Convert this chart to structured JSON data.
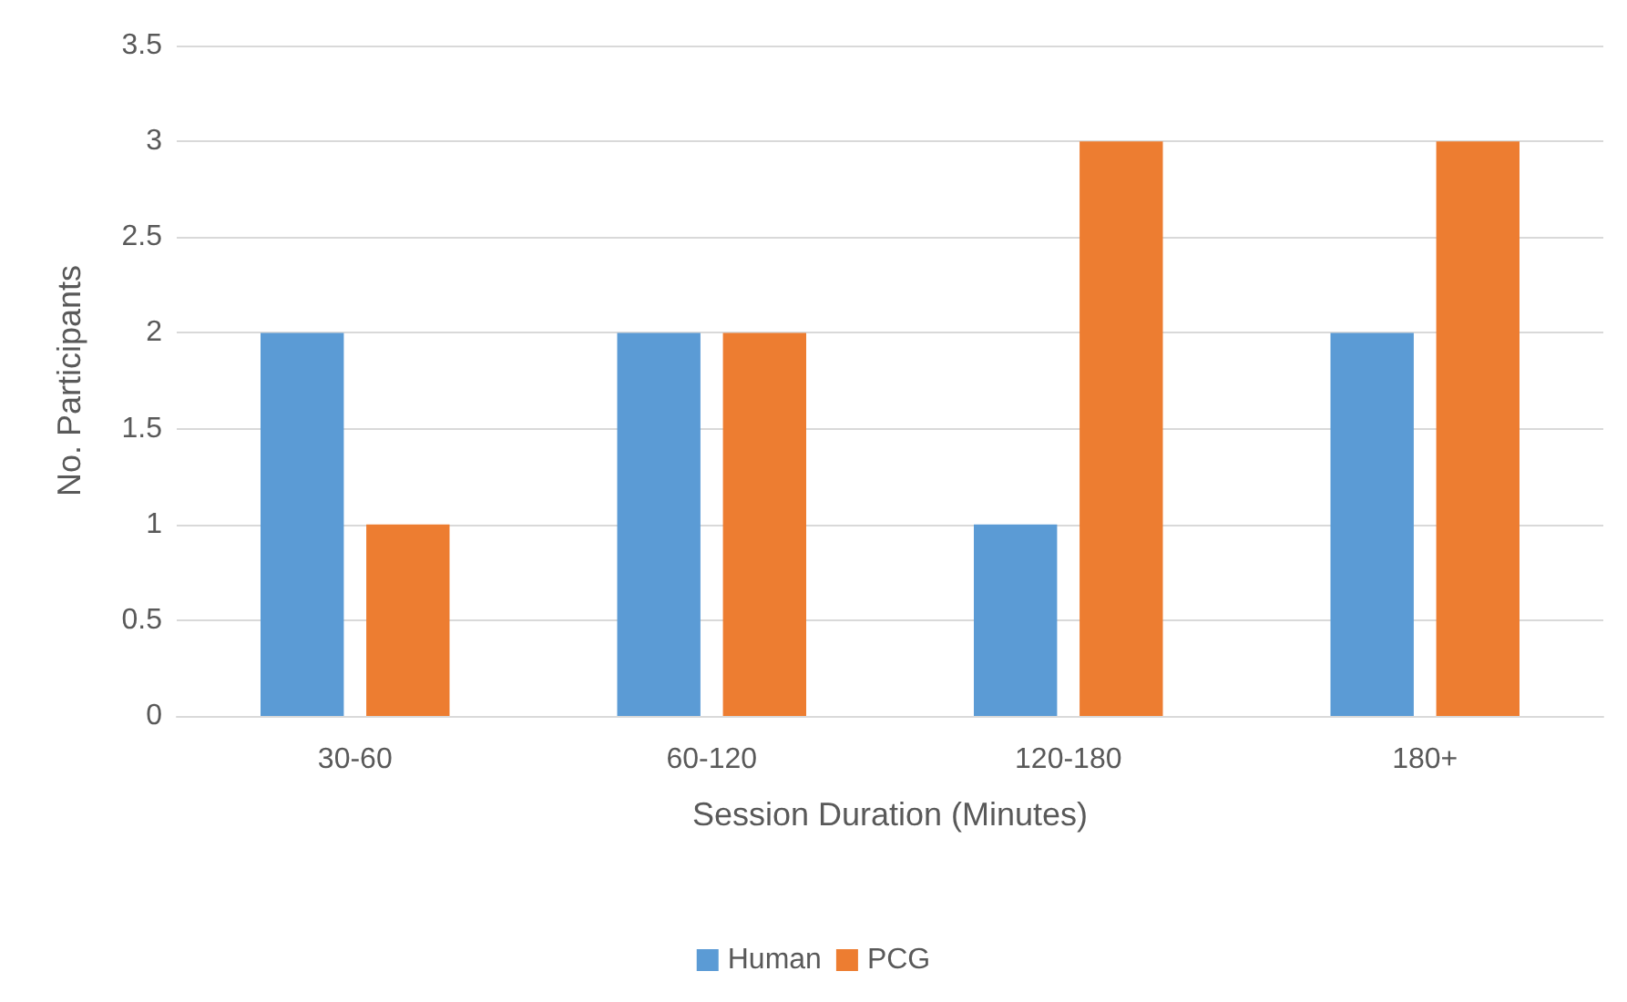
{
  "chart_data": {
    "type": "bar",
    "xlabel": "Session Duration (Minutes)",
    "ylabel": "No. Participants",
    "categories": [
      "30-60",
      "60-120",
      "120-180",
      "180+"
    ],
    "series": [
      {
        "name": "Human",
        "color": "#5b9bd5",
        "values": [
          2,
          2,
          1,
          2
        ]
      },
      {
        "name": "PCG",
        "color": "#ed7d31",
        "values": [
          1,
          2,
          3,
          3
        ]
      }
    ],
    "ylim": [
      0,
      3.5
    ],
    "yticks": [
      0,
      0.5,
      1,
      1.5,
      2,
      2.5,
      3,
      3.5
    ],
    "grid": "y",
    "legend": "bottom"
  }
}
